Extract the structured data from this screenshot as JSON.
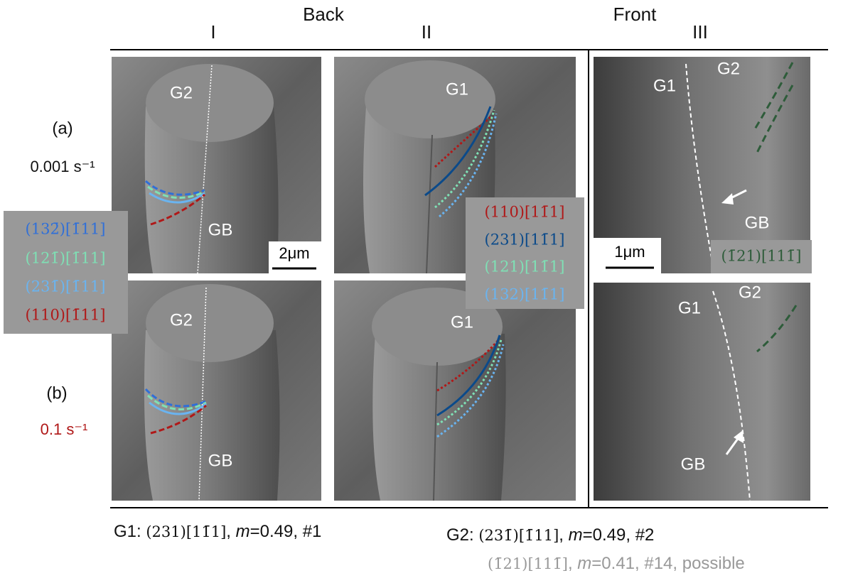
{
  "header": {
    "back": "Back",
    "front": "Front",
    "columns": [
      "I",
      "II",
      "III"
    ]
  },
  "rows": [
    {
      "label": "(a)",
      "rate": "0.001 s⁻¹"
    },
    {
      "label": "(b)",
      "rate": "0.1 s⁻¹"
    }
  ],
  "panels": [
    {
      "labels": [
        "G2",
        "GB"
      ]
    },
    {
      "labels": [
        "G1"
      ]
    },
    {
      "labels": [
        "G1",
        "G2",
        "GB"
      ]
    },
    {
      "labels": [
        "G2",
        "GB"
      ]
    },
    {
      "labels": [
        "G1"
      ]
    },
    {
      "labels": [
        "G1",
        "G2",
        "GB"
      ]
    }
  ],
  "scale_bars": [
    "2μm",
    "1μm"
  ],
  "legends": {
    "left": [
      "(132̄)[1̄11]",
      "(121̄)[1̄11]",
      "(231̄)[1̄11]",
      "(110)[1̄11]"
    ],
    "middle": [
      "(110)[11̄1]",
      "(231)[11̄1]",
      "(121)[11̄1]",
      "(132)[11̄1]"
    ],
    "right": [
      "(1̄21)[111̄]"
    ]
  },
  "captions": {
    "g1": [
      "G1: ",
      "(231)[11̄1]",
      ", ",
      "m",
      "=0.49, #1"
    ],
    "g2": [
      "G2: ",
      "(231̄)[1̄11]",
      ", ",
      "m",
      "=0.49, #2"
    ],
    "possible": [
      "(1̄21)[111̄]",
      ", ",
      "m",
      "=0.41, #14, possible"
    ]
  }
}
